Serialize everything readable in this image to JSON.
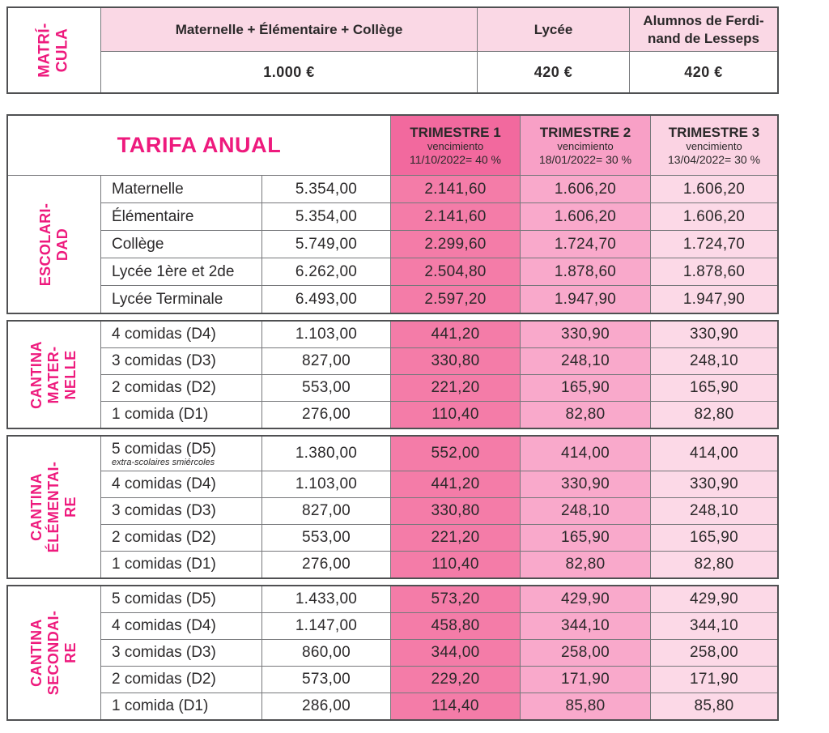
{
  "colors": {
    "brand_pink": "#EE1A7D",
    "top_header_pink": "#FAD8E5",
    "trimestre1_header": "#F2699E",
    "trimestre1_cell": "#F47CA8",
    "trimestre2_header": "#F8A0C6",
    "trimestre2_cell": "#F9A9CB",
    "trimestre3_header": "#FBD3E3",
    "trimestre3_cell": "#FCD9E7",
    "text_dark": "#2B292A",
    "border_dark": "#4F5052",
    "grid_line": "#77787B"
  },
  "matricula": {
    "label": "MATRÍ-\nCULA",
    "columns": [
      {
        "header": "Maternelle + Élémentaire + Collège",
        "value": "1.000 €"
      },
      {
        "header": "Lycée",
        "value": "420 €"
      },
      {
        "header": "Alumnos de Ferdi-\nnand de Lesseps",
        "value": "420 €"
      }
    ]
  },
  "tarifa": {
    "title": "TARIFA ANUAL",
    "trimesters": [
      {
        "name": "TRIMESTRE 1",
        "subtitle": "vencimiento",
        "due": "11/10/2022= 40 %"
      },
      {
        "name": "TRIMESTRE 2",
        "subtitle": "vencimiento",
        "due": "18/01/2022= 30 %"
      },
      {
        "name": "TRIMESTRE 3",
        "subtitle": "vencimiento",
        "due": "13/04/2022= 30 %"
      }
    ],
    "sections": [
      {
        "label": "ESCOLARI-\nDAD",
        "rows": [
          {
            "item": "Maternelle",
            "annual": "5.354,00",
            "t1": "2.141,60",
            "t2": "1.606,20",
            "t3": "1.606,20"
          },
          {
            "item": "Élémentaire",
            "annual": "5.354,00",
            "t1": "2.141,60",
            "t2": "1.606,20",
            "t3": "1.606,20"
          },
          {
            "item": "Collège",
            "annual": "5.749,00",
            "t1": "2.299,60",
            "t2": "1.724,70",
            "t3": "1.724,70"
          },
          {
            "item": "Lycée 1ère et 2de",
            "annual": "6.262,00",
            "t1": "2.504,80",
            "t2": "1.878,60",
            "t3": "1.878,60"
          },
          {
            "item": "Lycée Terminale",
            "annual": "6.493,00",
            "t1": "2.597,20",
            "t2": "1.947,90",
            "t3": "1.947,90"
          }
        ]
      },
      {
        "label": "CANTINA\nMATER-\nNELLE",
        "rows": [
          {
            "item": "4 comidas (D4)",
            "annual": "1.103,00",
            "t1": "441,20",
            "t2": "330,90",
            "t3": "330,90"
          },
          {
            "item": "3 comidas (D3)",
            "annual": "827,00",
            "t1": "330,80",
            "t2": "248,10",
            "t3": "248,10"
          },
          {
            "item": "2 comidas (D2)",
            "annual": "553,00",
            "t1": "221,20",
            "t2": "165,90",
            "t3": "165,90"
          },
          {
            "item": "1 comida (D1)",
            "annual": "276,00",
            "t1": "110,40",
            "t2": "82,80",
            "t3": "82,80"
          }
        ]
      },
      {
        "label": "CANTINA\nÉLÉMENTAI-\nRE",
        "rows": [
          {
            "item": "5 comidas (D5)",
            "note": "extra-scolaires smiércoles",
            "annual": "1.380,00",
            "t1": "552,00",
            "t2": "414,00",
            "t3": "414,00"
          },
          {
            "item": "4 comidas (D4)",
            "annual": "1.103,00",
            "t1": "441,20",
            "t2": "330,90",
            "t3": "330,90"
          },
          {
            "item": "3 comidas (D3)",
            "annual": "827,00",
            "t1": "330,80",
            "t2": "248,10",
            "t3": "248,10"
          },
          {
            "item": "2 comidas (D2)",
            "annual": "553,00",
            "t1": "221,20",
            "t2": "165,90",
            "t3": "165,90"
          },
          {
            "item": "1 comidas (D1)",
            "annual": "276,00",
            "t1": "110,40",
            "t2": "82,80",
            "t3": "82,80"
          }
        ]
      },
      {
        "label": "CANTINA\nSECONDAI-\nRE",
        "rows": [
          {
            "item": "5 comidas (D5)",
            "annual": "1.433,00",
            "t1": "573,20",
            "t2": "429,90",
            "t3": "429,90"
          },
          {
            "item": "4 comidas (D4)",
            "annual": "1.147,00",
            "t1": "458,80",
            "t2": "344,10",
            "t3": "344,10"
          },
          {
            "item": "3 comidas (D3)",
            "annual": "860,00",
            "t1": "344,00",
            "t2": "258,00",
            "t3": "258,00"
          },
          {
            "item": "2 comidas (D2)",
            "annual": "573,00",
            "t1": "229,20",
            "t2": "171,90",
            "t3": "171,90"
          },
          {
            "item": "1 comida (D1)",
            "annual": "286,00",
            "t1": "114,40",
            "t2": "85,80",
            "t3": "85,80"
          }
        ]
      }
    ]
  }
}
